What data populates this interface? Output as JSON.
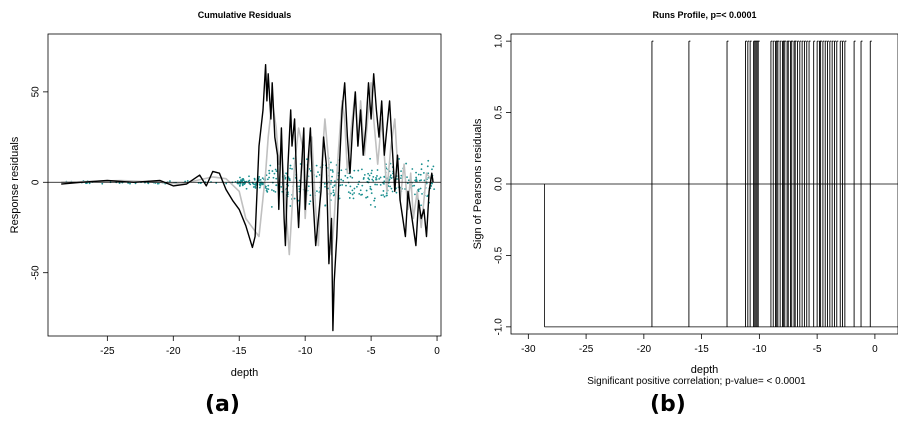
{
  "panels": [
    {
      "label": "(a)"
    },
    {
      "label": "(b)"
    }
  ],
  "chart_data": [
    {
      "type": "line",
      "title": "Cumulative Residuals",
      "xlabel": "depth",
      "ylabel": "Response  residuals",
      "xlim": [
        -29.5,
        0.3
      ],
      "ylim": [
        -85,
        82
      ],
      "xticks": [
        -25,
        -20,
        -15,
        -10,
        -5,
        0
      ],
      "xtick_labels": [
        "-25",
        "-20",
        "-15",
        "-10",
        "-5",
        "0"
      ],
      "yticks": [
        -50,
        0,
        50
      ],
      "ytick_labels": [
        "-50",
        "0",
        "50"
      ],
      "series": [
        {
          "role": "cumulative-residual-grey",
          "color": "#c0c0c0",
          "x": [
            -28.5,
            -24,
            -21,
            -19.5,
            -17,
            -16,
            -15,
            -14.5,
            -13.5,
            -13,
            -12.8,
            -12.5,
            -12.2,
            -12,
            -11.8,
            -11.5,
            -11.2,
            -11,
            -10.8,
            -10.5,
            -10.2,
            -10,
            -9.8,
            -9.5,
            -9.2,
            -9,
            -8.8,
            -8.5,
            -8.2,
            -8,
            -7.8,
            -7.5,
            -7.2,
            -7,
            -6.8,
            -6.5,
            -6.2,
            -6,
            -5.8,
            -5.5,
            -5.2,
            -5,
            -4.8,
            -4.5,
            -4.2,
            -4,
            -3.8,
            -3.5,
            -3.2,
            -3,
            -2.8,
            -2.5,
            -2.2,
            -2,
            -1.8,
            -1.5,
            -1.2,
            -1,
            -0.8,
            -0.5,
            -0.3
          ],
          "values": [
            0,
            1,
            0,
            -1,
            3,
            2,
            -5,
            -20,
            -30,
            5,
            25,
            45,
            30,
            10,
            20,
            -10,
            -40,
            -15,
            10,
            30,
            20,
            -20,
            5,
            25,
            -15,
            -35,
            5,
            35,
            10,
            -40,
            -20,
            15,
            45,
            35,
            5,
            30,
            50,
            20,
            45,
            15,
            40,
            55,
            35,
            10,
            35,
            15,
            -5,
            20,
            35,
            10,
            -10,
            10,
            -15,
            5,
            -20,
            -5,
            -25,
            -10,
            5,
            2,
            0
          ]
        },
        {
          "role": "cumulative-residual-black",
          "color": "#000000",
          "x": [
            -28.5,
            -27,
            -25,
            -23,
            -21,
            -20,
            -19,
            -18,
            -17.5,
            -17,
            -16.5,
            -16,
            -15.5,
            -15,
            -14.5,
            -14,
            -13.8,
            -13.5,
            -13.2,
            -13,
            -12.9,
            -12.8,
            -12.6,
            -12.5,
            -12.3,
            -12.1,
            -12,
            -11.8,
            -11.6,
            -11.5,
            -11.3,
            -11.1,
            -11,
            -10.8,
            -10.6,
            -10.5,
            -10.3,
            -10.1,
            -10,
            -9.8,
            -9.6,
            -9.4,
            -9.2,
            -9,
            -8.8,
            -8.6,
            -8.4,
            -8.2,
            -8,
            -7.9,
            -7.8,
            -7.6,
            -7.4,
            -7.2,
            -7,
            -6.8,
            -6.6,
            -6.4,
            -6.2,
            -6,
            -5.8,
            -5.6,
            -5.4,
            -5.2,
            -5,
            -4.8,
            -4.6,
            -4.4,
            -4.2,
            -4,
            -3.8,
            -3.6,
            -3.4,
            -3.2,
            -3,
            -2.8,
            -2.6,
            -2.4,
            -2.2,
            -2,
            -1.8,
            -1.6,
            -1.4,
            -1.2,
            -1,
            -0.8,
            -0.6,
            -0.4,
            -0.3
          ],
          "values": [
            -1,
            0,
            1,
            0,
            1,
            -2,
            -1,
            4,
            -2,
            6,
            5,
            -4,
            -10,
            -15,
            -24,
            -36,
            -30,
            20,
            40,
            65,
            45,
            60,
            35,
            55,
            25,
            15,
            -15,
            30,
            -20,
            -35,
            10,
            40,
            20,
            35,
            -10,
            -25,
            5,
            30,
            -15,
            10,
            30,
            -10,
            -35,
            -20,
            -5,
            25,
            10,
            -45,
            -20,
            -82,
            -55,
            -30,
            10,
            40,
            55,
            25,
            5,
            30,
            50,
            20,
            40,
            15,
            30,
            55,
            35,
            60,
            40,
            25,
            45,
            15,
            30,
            45,
            20,
            -5,
            15,
            -10,
            -20,
            -30,
            -5,
            -15,
            -25,
            -35,
            -10,
            -20,
            -15,
            -30,
            -5,
            5,
            0
          ]
        }
      ],
      "point_color": "#1a8f8f",
      "hline_y": 0
    },
    {
      "type": "line",
      "title": "Runs Profile, p=< 0.0001",
      "xlabel": "depth",
      "ylabel": "Sign of Pearsons residuals",
      "annotation": "Significant positive correlation; p-value= < 0.0001",
      "xlim": [
        -31.5,
        2.0
      ],
      "ylim": [
        -1.05,
        1.05
      ],
      "xticks": [
        -30,
        -25,
        -20,
        -15,
        -10,
        -5,
        0
      ],
      "xtick_labels": [
        "-30",
        "-25",
        "-20",
        "-15",
        "-10",
        "-5",
        "0"
      ],
      "yticks": [
        -1.0,
        -0.5,
        0.0,
        0.5,
        1.0
      ],
      "ytick_labels": [
        "-1.0",
        "-0.5",
        "0.0",
        "0.5",
        "1.0"
      ],
      "hline_y": 0,
      "baseline_start": -28.6,
      "positive_depths": [
        -19.3,
        -16.1,
        -12.8,
        -11.2,
        -11.0,
        -10.8,
        -10.5,
        -10.4,
        -10.3,
        -10.2,
        -10.1,
        -9.0,
        -8.8,
        -8.6,
        -8.5,
        -8.4,
        -8.2,
        -8.0,
        -7.9,
        -7.8,
        -7.6,
        -7.5,
        -7.3,
        -7.2,
        -7.0,
        -6.9,
        -6.7,
        -6.5,
        -6.3,
        -6.1,
        -5.9,
        -5.7,
        -5.3,
        -5.0,
        -4.8,
        -4.7,
        -4.5,
        -4.3,
        -4.1,
        -3.9,
        -3.7,
        -3.5,
        -3.3,
        -3.0,
        -2.8,
        -2.6,
        -1.8,
        -1.2,
        -0.4
      ]
    }
  ],
  "colors": {
    "axis": "#000000",
    "grey_line": "#c0c0c0",
    "black_line": "#000000",
    "teal_points": "#1a8f8f"
  }
}
